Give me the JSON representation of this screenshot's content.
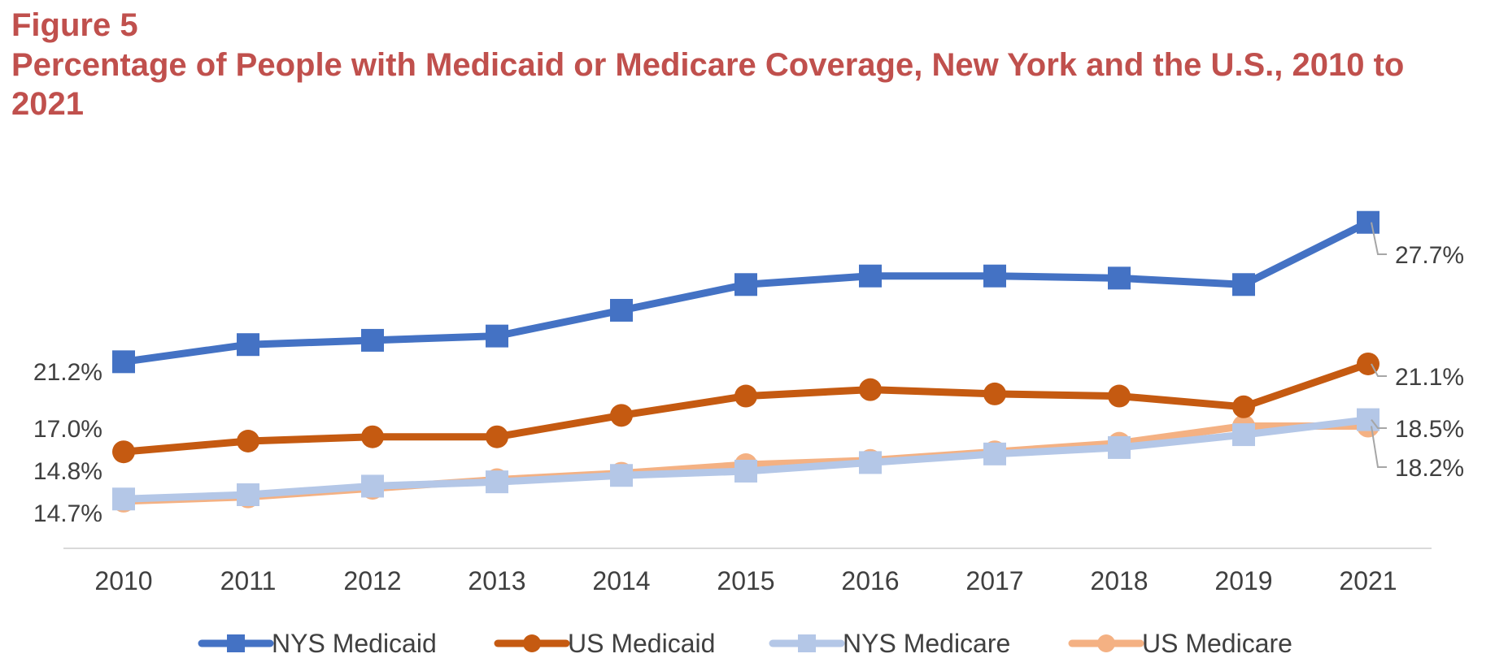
{
  "figure_label": "Figure 5",
  "chart_data": {
    "type": "line",
    "title": "Percentage of People with Medicaid or Medicare Coverage, New York and the U.S., 2010 to 2021",
    "categories": [
      "2010",
      "2011",
      "2012",
      "2013",
      "2014",
      "2015",
      "2016",
      "2017",
      "2018",
      "2019",
      "2021"
    ],
    "ylim": [
      12.5,
      30.0
    ],
    "xlabel": "",
    "ylabel": "",
    "grid": false,
    "legend_position": "bottom",
    "series": [
      {
        "name": "NYS Medicaid",
        "color": "#4472c4",
        "marker": "square",
        "values": [
          21.2,
          22.0,
          22.2,
          22.4,
          23.6,
          24.8,
          25.2,
          25.2,
          25.1,
          24.8,
          27.7
        ],
        "labels": {
          "first": "21.2%",
          "last": "27.7%"
        }
      },
      {
        "name": "US Medicaid",
        "color": "#c55a11",
        "marker": "circle",
        "values": [
          17.0,
          17.5,
          17.7,
          17.7,
          18.7,
          19.6,
          19.9,
          19.7,
          19.6,
          19.1,
          21.1
        ],
        "labels": {
          "first": "17.0%",
          "last": "21.1%"
        }
      },
      {
        "name": "NYS Medicare",
        "color": "#b4c7e7",
        "marker": "square",
        "values": [
          14.8,
          15.0,
          15.4,
          15.6,
          15.9,
          16.1,
          16.5,
          16.9,
          17.2,
          17.8,
          18.5
        ],
        "labels": {
          "first": "14.8%",
          "last": "18.5%"
        }
      },
      {
        "name": "US Medicare",
        "color": "#f4b183",
        "marker": "circle",
        "values": [
          14.7,
          14.9,
          15.3,
          15.7,
          16.0,
          16.4,
          16.6,
          17.0,
          17.4,
          18.2,
          18.2
        ],
        "labels": {
          "first": "14.7%",
          "last": "18.2%"
        }
      }
    ]
  }
}
